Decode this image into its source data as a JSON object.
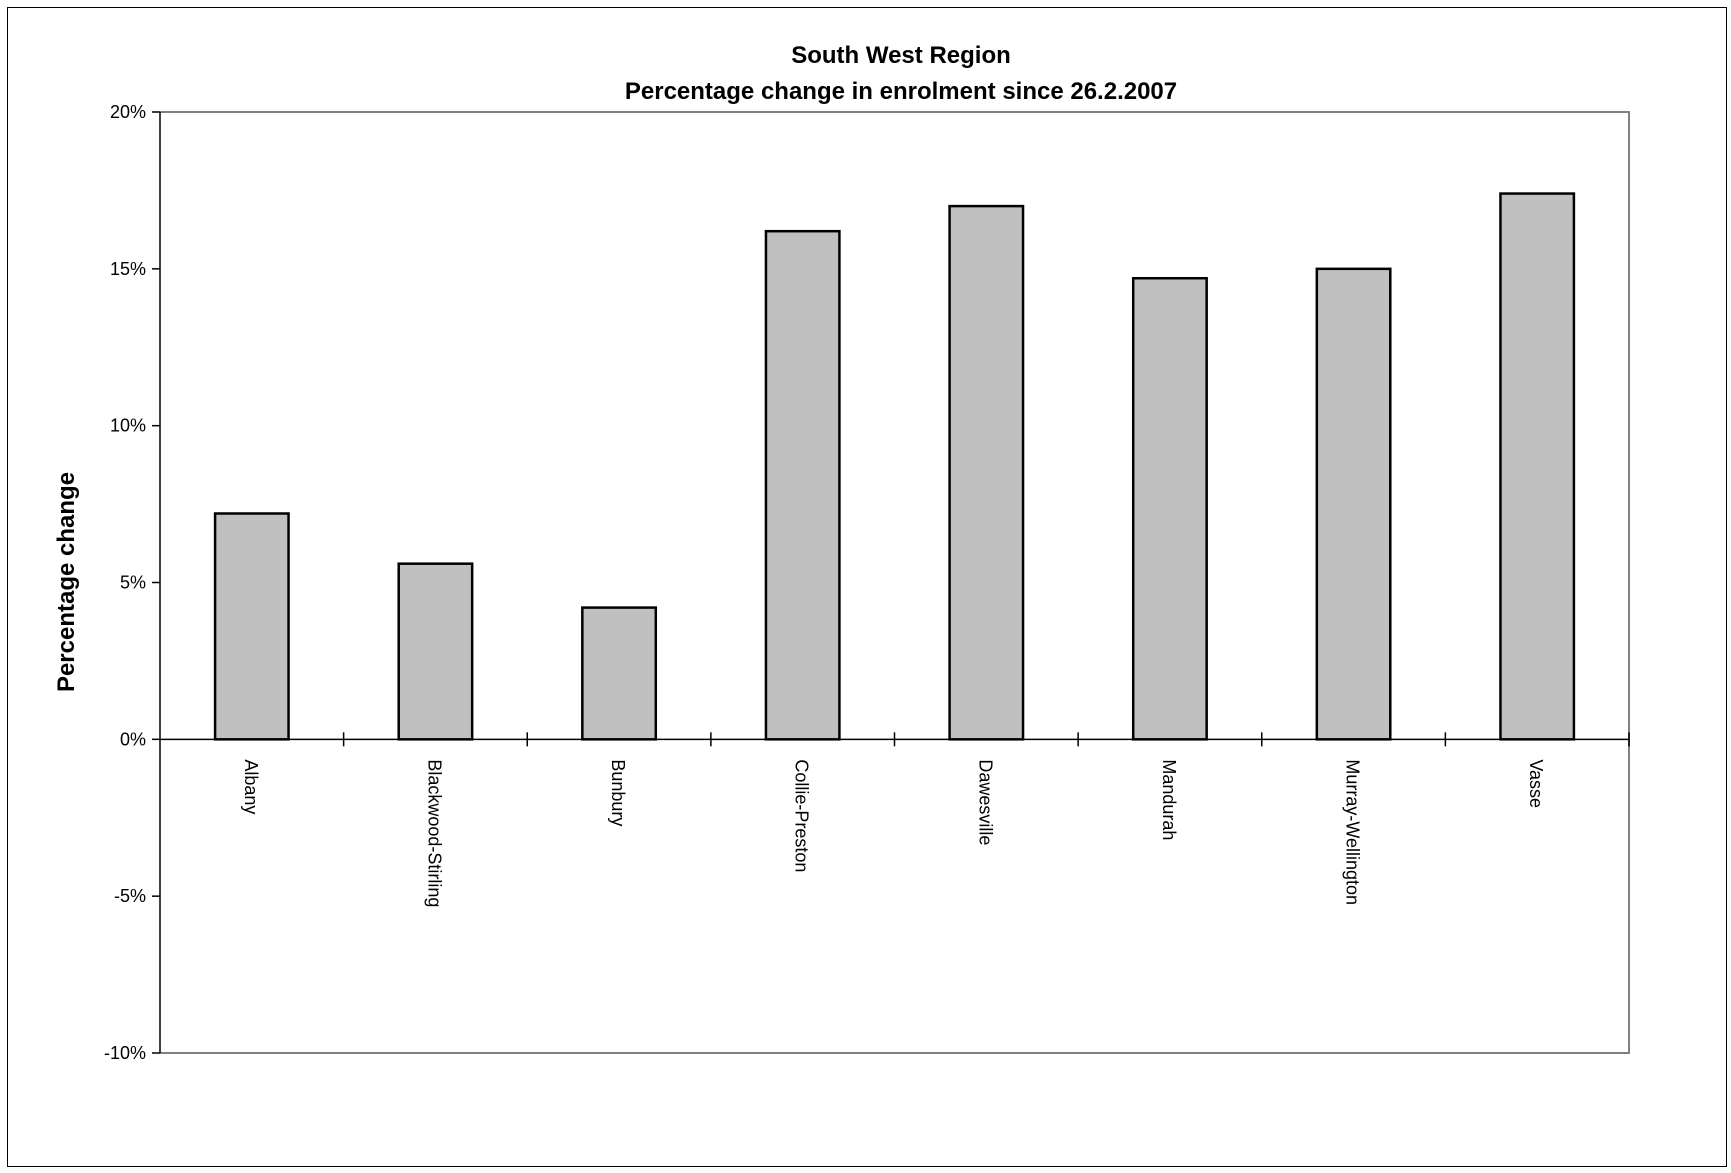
{
  "chart_data": {
    "type": "bar",
    "title_line1": "South West Region",
    "title_line2": "Percentage change in enrolment since 26.2.2007",
    "xlabel": "",
    "ylabel": "Percentage change",
    "ylim": [
      -10,
      20
    ],
    "y_ticks": [
      20,
      15,
      10,
      5,
      0,
      -5,
      -10
    ],
    "y_tick_labels": [
      "20%",
      "15%",
      "10%",
      "5%",
      "0%",
      "-5%",
      "-10%"
    ],
    "categories": [
      "Albany",
      "Blackwood-Stirling",
      "Bunbury",
      "Collie-Preston",
      "Dawesville",
      "Mandurah",
      "Murray-Wellington",
      "Vasse"
    ],
    "values": [
      7.2,
      5.6,
      4.2,
      16.2,
      17.0,
      14.7,
      15.0,
      17.4
    ],
    "grid": false,
    "legend": "none",
    "colors": {
      "bar_fill": "#c0c0c0",
      "bar_stroke": "#000000",
      "plot_border": "#808080",
      "axis": "#000000"
    }
  }
}
